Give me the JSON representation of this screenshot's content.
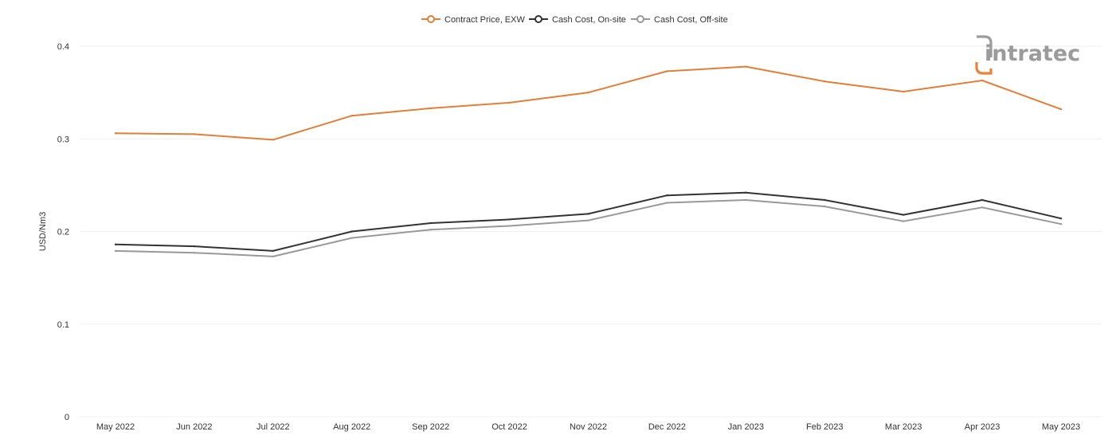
{
  "logo": {
    "text": "intratec",
    "color": "#9b9b9b",
    "accent": "#e8823a"
  },
  "chart_data": {
    "type": "line",
    "categories": [
      "May 2022",
      "Jun 2022",
      "Jul 2022",
      "Aug 2022",
      "Sep 2022",
      "Oct 2022",
      "Nov 2022",
      "Dec 2022",
      "Jan 2023",
      "Feb 2023",
      "Mar 2023",
      "Apr 2023",
      "May 2023"
    ],
    "series": [
      {
        "name": "Contract Price, EXW",
        "color": "#e07f3a",
        "values": [
          0.306,
          0.305,
          0.299,
          0.325,
          0.333,
          0.339,
          0.35,
          0.373,
          0.378,
          0.362,
          0.351,
          0.363,
          0.332
        ]
      },
      {
        "name": "Cash Cost, On-site",
        "color": "#333333",
        "values": [
          0.186,
          0.184,
          0.179,
          0.2,
          0.209,
          0.213,
          0.219,
          0.239,
          0.242,
          0.234,
          0.218,
          0.234,
          0.214
        ]
      },
      {
        "name": "Cash Cost, Off-site",
        "color": "#999999",
        "values": [
          0.179,
          0.177,
          0.173,
          0.193,
          0.202,
          0.206,
          0.212,
          0.231,
          0.234,
          0.227,
          0.211,
          0.226,
          0.208
        ]
      }
    ],
    "title": "",
    "xlabel": "",
    "ylabel": "USD/Nm3",
    "ylim": [
      0,
      0.4
    ],
    "yticks": [
      "0",
      "0.1",
      "0.2",
      "0.3",
      "0.4"
    ],
    "ytick_values": [
      0,
      0.1,
      0.2,
      0.3,
      0.4
    ],
    "grid": true,
    "legend_position": "top-center"
  }
}
